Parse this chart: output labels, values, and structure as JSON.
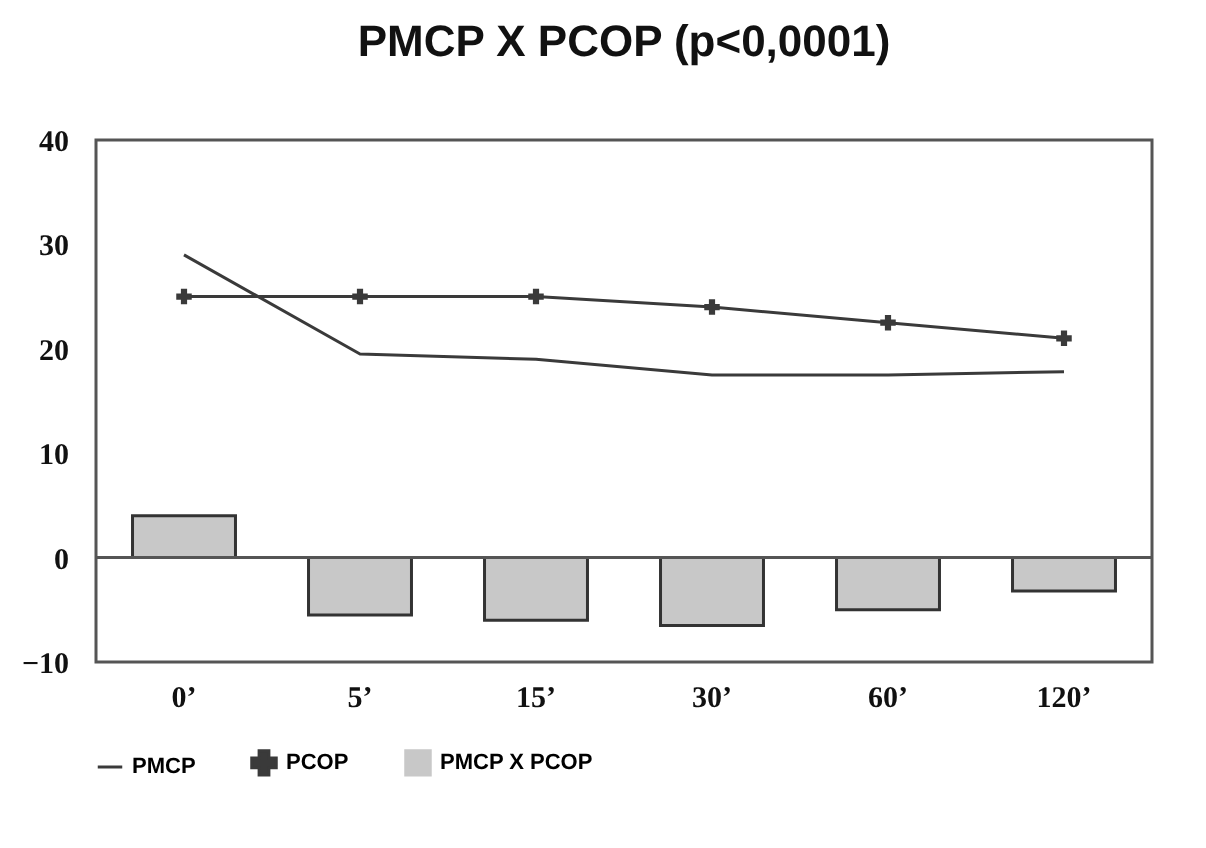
{
  "chart_data": {
    "type": "line",
    "title": "PMCP X PCOP (p<0,0001)",
    "categories": [
      "0’",
      "5’",
      "15’",
      "30’",
      "60’",
      "120’"
    ],
    "series": [
      {
        "name": "PMCP",
        "color": "#3a3a3a",
        "marker": "none",
        "values": [
          29,
          19.5,
          19,
          17.5,
          17.5,
          17.8
        ]
      },
      {
        "name": "PCOP",
        "color": "#3a3a3a",
        "marker": "cross",
        "values": [
          25,
          25,
          25,
          24,
          22.5,
          21
        ]
      },
      {
        "name": "PMCP X PCOP",
        "type": "bar",
        "color": "#c8c8c8",
        "values": [
          4,
          -5.5,
          -6,
          -6.5,
          -5,
          -3.2
        ]
      }
    ],
    "ylim": [
      -10,
      40
    ],
    "yticks": [
      -10,
      0,
      10,
      20,
      30,
      40
    ],
    "ref_lines": [
      {
        "axis": "y",
        "value": 0,
        "color": "#555555"
      }
    ],
    "grid": false,
    "legend": "bottom"
  }
}
